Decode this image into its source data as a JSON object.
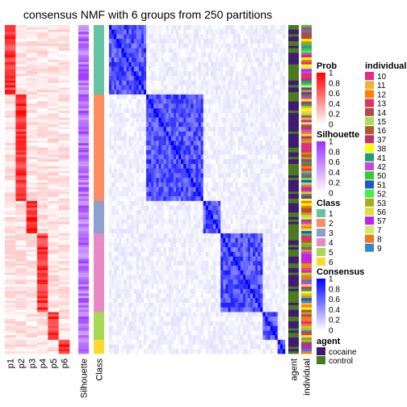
{
  "chart_data": {
    "type": "heatmap",
    "title": "consensus NMF with 6 groups from 250 partitions",
    "prob_columns": [
      "p1",
      "p2",
      "p3",
      "p4",
      "p5",
      "p6"
    ],
    "annotation_labels": {
      "silhouette": "Silhouette",
      "class": "Class",
      "agent": "agent",
      "individual": "individual"
    },
    "group_sizes": [
      30,
      46,
      14,
      34,
      12,
      6
    ],
    "legends": {
      "prob": {
        "title": "Prob",
        "ticks": [
          "1",
          "0.8",
          "0.6",
          "0.4",
          "0.2",
          "0"
        ],
        "range": [
          0,
          1
        ],
        "colors": [
          "#ffffff",
          "#ff0000"
        ]
      },
      "silhouette": {
        "title": "Silhouette",
        "ticks": [
          "1",
          "0.8",
          "0.6",
          "0.4",
          "0.2",
          "0"
        ],
        "range": [
          0,
          1
        ],
        "colors": [
          "#ffffff",
          "#9933ff"
        ]
      },
      "class": {
        "title": "Class",
        "entries": [
          {
            "label": "1",
            "color": "#66c2a5"
          },
          {
            "label": "2",
            "color": "#fc8d62"
          },
          {
            "label": "3",
            "color": "#8da0cb"
          },
          {
            "label": "4",
            "color": "#e78ac3"
          },
          {
            "label": "5",
            "color": "#a6d854"
          },
          {
            "label": "6",
            "color": "#ffd92f"
          }
        ]
      },
      "consensus": {
        "title": "Consensus",
        "ticks": [
          "1",
          "0.8",
          "0.6",
          "0.4",
          "0.2",
          "0"
        ],
        "range": [
          0,
          1
        ],
        "colors": [
          "#ffffff",
          "#0000ff"
        ]
      },
      "agent": {
        "title": "agent",
        "entries": [
          {
            "label": "cocaine",
            "color": "#3f1a73"
          },
          {
            "label": "control",
            "color": "#4a7a1e"
          }
        ]
      },
      "individual": {
        "title": "individual",
        "entries": [
          {
            "label": "10",
            "color": "#e7298a"
          },
          {
            "label": "11",
            "color": "#f2b134"
          },
          {
            "label": "12",
            "color": "#ff7f00"
          },
          {
            "label": "13",
            "color": "#dd3366"
          },
          {
            "label": "14",
            "color": "#b24a4a"
          },
          {
            "label": "15",
            "color": "#a6e05a"
          },
          {
            "label": "16",
            "color": "#b15928"
          },
          {
            "label": "37",
            "color": "#c0306a"
          },
          {
            "label": "38",
            "color": "#ffff00"
          },
          {
            "label": "41",
            "color": "#1b9e77"
          },
          {
            "label": "42",
            "color": "#cc44dd"
          },
          {
            "label": "50",
            "color": "#33cc33"
          },
          {
            "label": "51",
            "color": "#2255cc"
          },
          {
            "label": "52",
            "color": "#44ee44"
          },
          {
            "label": "53",
            "color": "#aaaa22"
          },
          {
            "label": "56",
            "color": "#e0e040"
          },
          {
            "label": "57",
            "color": "#bb22ee"
          },
          {
            "label": "7",
            "color": "#ccee66"
          },
          {
            "label": "8",
            "color": "#ee7722"
          },
          {
            "label": "9",
            "color": "#3388cc"
          }
        ]
      }
    }
  }
}
